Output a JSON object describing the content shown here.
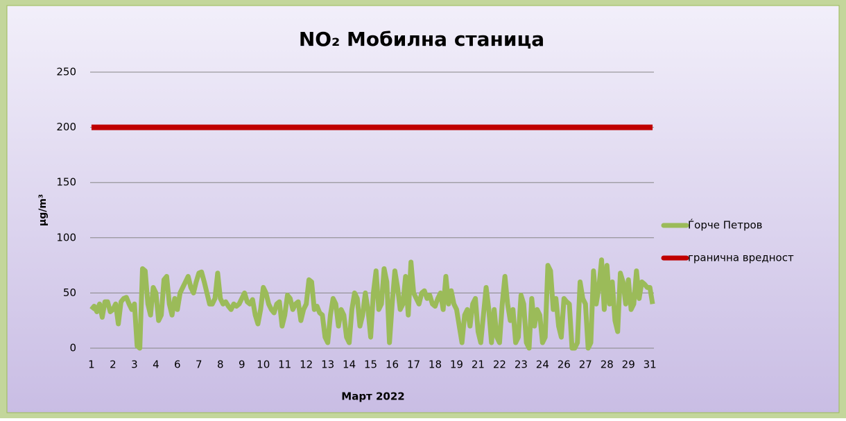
{
  "chart_data": {
    "type": "line",
    "title": "NO₂ Мобилна станица",
    "x_label": "Март 2022",
    "y_label": "µg/m³",
    "categories": [
      "1",
      null,
      null,
      null,
      null,
      null,
      null,
      null,
      "2",
      null,
      null,
      null,
      null,
      null,
      null,
      null,
      "3",
      null,
      null,
      null,
      null,
      null,
      null,
      null,
      "4",
      null,
      null,
      null,
      null,
      null,
      null,
      null,
      "6",
      null,
      null,
      null,
      null,
      null,
      null,
      null,
      "7",
      null,
      null,
      null,
      null,
      null,
      null,
      null,
      "8",
      null,
      null,
      null,
      null,
      null,
      null,
      null,
      "9",
      null,
      null,
      null,
      null,
      null,
      null,
      null,
      "10",
      null,
      null,
      null,
      null,
      null,
      null,
      null,
      "11",
      null,
      null,
      null,
      null,
      null,
      null,
      null,
      "12",
      null,
      null,
      null,
      null,
      null,
      null,
      null,
      "13",
      null,
      null,
      null,
      null,
      null,
      null,
      null,
      "14",
      null,
      null,
      null,
      null,
      null,
      null,
      null,
      "15",
      null,
      null,
      null,
      null,
      null,
      null,
      null,
      "16",
      null,
      null,
      null,
      null,
      null,
      null,
      null,
      "17",
      null,
      null,
      null,
      null,
      null,
      null,
      null,
      "18",
      null,
      null,
      null,
      null,
      null,
      null,
      null,
      "19",
      null,
      null,
      null,
      null,
      null,
      null,
      null,
      "21",
      null,
      null,
      null,
      null,
      null,
      null,
      null,
      "22",
      null,
      null,
      null,
      null,
      null,
      null,
      null,
      "23",
      null,
      null,
      null,
      null,
      null,
      null,
      null,
      "24",
      null,
      null,
      null,
      null,
      null,
      null,
      null,
      "26",
      null,
      null,
      null,
      null,
      null,
      null,
      null,
      "27",
      null,
      null,
      null,
      null,
      null,
      null,
      null,
      "28",
      null,
      null,
      null,
      null,
      null,
      null,
      null,
      "29",
      null,
      null,
      null,
      null,
      null,
      null,
      null,
      "31",
      null
    ],
    "series": [
      {
        "name": "Ѓорче Петров",
        "color": "#9bbb59",
        "values": [
          35,
          38,
          33,
          40,
          28,
          42,
          42,
          33,
          35,
          40,
          22,
          42,
          45,
          46,
          40,
          35,
          40,
          2,
          0,
          72,
          70,
          40,
          30,
          55,
          50,
          25,
          30,
          62,
          65,
          40,
          30,
          45,
          35,
          50,
          55,
          60,
          65,
          55,
          50,
          60,
          68,
          69,
          60,
          50,
          40,
          40,
          45,
          68,
          45,
          40,
          42,
          38,
          35,
          40,
          38,
          40,
          45,
          50,
          42,
          40,
          44,
          30,
          22,
          35,
          55,
          50,
          40,
          35,
          32,
          40,
          42,
          20,
          30,
          48,
          45,
          35,
          40,
          42,
          25,
          35,
          40,
          62,
          60,
          35,
          38,
          32,
          30,
          10,
          5,
          30,
          45,
          40,
          20,
          35,
          30,
          10,
          5,
          35,
          50,
          45,
          20,
          30,
          50,
          35,
          10,
          50,
          70,
          35,
          40,
          72,
          60,
          5,
          40,
          70,
          55,
          35,
          40,
          65,
          30,
          78,
          50,
          45,
          40,
          50,
          52,
          45,
          48,
          40,
          38,
          45,
          50,
          35,
          65,
          40,
          52,
          40,
          35,
          20,
          5,
          30,
          35,
          20,
          40,
          45,
          15,
          5,
          30,
          55,
          35,
          5,
          35,
          10,
          5,
          40,
          65,
          40,
          25,
          35,
          5,
          10,
          48,
          40,
          5,
          0,
          45,
          20,
          35,
          30,
          5,
          10,
          75,
          70,
          35,
          45,
          20,
          10,
          45,
          42,
          40,
          0,
          0,
          5,
          60,
          45,
          40,
          0,
          5,
          70,
          40,
          55,
          80,
          35,
          75,
          40,
          60,
          25,
          15,
          68,
          60,
          40,
          62,
          35,
          40,
          70,
          45,
          60,
          58,
          55,
          55,
          40
        ]
      },
      {
        "name": "гранична вредност",
        "color": "#c00000",
        "values": [
          200,
          200,
          200,
          200,
          200,
          200,
          200,
          200,
          200,
          200,
          200,
          200,
          200,
          200,
          200,
          200,
          200,
          200,
          200,
          200,
          200,
          200,
          200,
          200,
          200,
          200,
          200,
          200,
          200,
          200,
          200,
          200,
          200,
          200,
          200,
          200,
          200,
          200,
          200,
          200,
          200,
          200,
          200,
          200,
          200,
          200,
          200,
          200,
          200,
          200,
          200,
          200,
          200,
          200,
          200,
          200,
          200,
          200,
          200,
          200,
          200,
          200,
          200,
          200,
          200,
          200,
          200,
          200,
          200,
          200,
          200,
          200,
          200,
          200,
          200,
          200,
          200,
          200,
          200,
          200,
          200,
          200,
          200,
          200,
          200,
          200,
          200,
          200,
          200,
          200,
          200,
          200,
          200,
          200,
          200,
          200,
          200,
          200,
          200,
          200,
          200,
          200,
          200,
          200,
          200,
          200,
          200,
          200,
          200,
          200,
          200,
          200,
          200,
          200,
          200,
          200,
          200,
          200,
          200,
          200,
          200,
          200,
          200,
          200,
          200,
          200,
          200,
          200,
          200,
          200,
          200,
          200,
          200,
          200,
          200,
          200,
          200,
          200,
          200,
          200,
          200,
          200,
          200,
          200,
          200,
          200,
          200,
          200,
          200,
          200,
          200,
          200,
          200,
          200,
          200,
          200,
          200,
          200,
          200,
          200,
          200,
          200,
          200,
          200,
          200,
          200,
          200,
          200,
          200,
          200,
          200,
          200,
          200,
          200,
          200,
          200,
          200,
          200,
          200,
          200,
          200,
          200,
          200,
          200,
          200,
          200,
          200,
          200,
          200,
          200,
          200,
          200,
          200,
          200,
          200,
          200,
          200,
          200,
          200,
          200,
          200,
          200,
          200,
          200,
          200,
          200,
          200,
          200,
          200,
          200
        ]
      }
    ],
    "ylim": [
      0,
      250
    ],
    "yticks": [
      0,
      50,
      100,
      150,
      200,
      250
    ],
    "grid": true,
    "legend": "right"
  }
}
